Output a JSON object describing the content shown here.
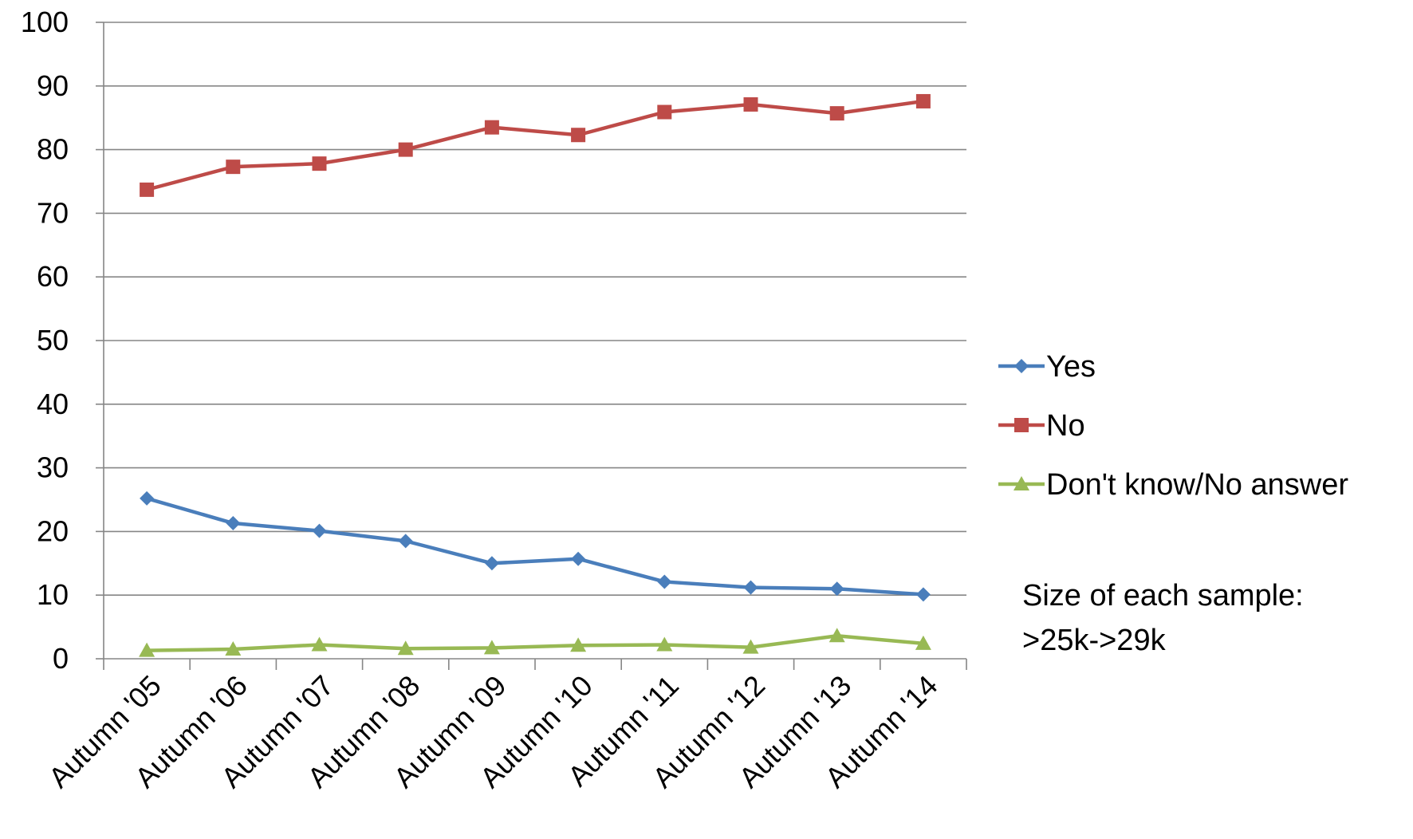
{
  "chart_data": {
    "type": "line",
    "title": "",
    "xlabel": "",
    "ylabel": "",
    "ylim": [
      0,
      100
    ],
    "yticks": [
      0,
      10,
      20,
      30,
      40,
      50,
      60,
      70,
      80,
      90,
      100
    ],
    "grid": "horizontal",
    "legend_position": "right",
    "categories": [
      "Autumn '05",
      "Autumn '06",
      "Autumn '07",
      "Autumn '08",
      "Autumn '09",
      "Autumn '10",
      "Autumn '11",
      "Autumn '12",
      "Autumn '13",
      "Autumn '14"
    ],
    "series": [
      {
        "name": "Yes",
        "color": "#4a7ebb",
        "marker": "diamond",
        "values": [
          25.2,
          21.3,
          20.1,
          18.5,
          15.0,
          15.7,
          12.1,
          11.2,
          11.0,
          10.1
        ]
      },
      {
        "name": "No",
        "color": "#be4b48",
        "marker": "square",
        "values": [
          73.7,
          77.3,
          77.8,
          80.0,
          83.5,
          82.3,
          85.9,
          87.1,
          85.7,
          87.6
        ]
      },
      {
        "name": "Don't know/No answer",
        "color": "#98b954",
        "marker": "triangle",
        "values": [
          1.3,
          1.5,
          2.2,
          1.6,
          1.7,
          2.1,
          2.2,
          1.8,
          3.6,
          2.4
        ]
      }
    ],
    "annotation": {
      "line1": "Size of each sample:",
      "line2": ">25k->29k"
    }
  },
  "colors": {
    "gridline": "#868686",
    "axis": "#868686",
    "text": "#000000"
  }
}
